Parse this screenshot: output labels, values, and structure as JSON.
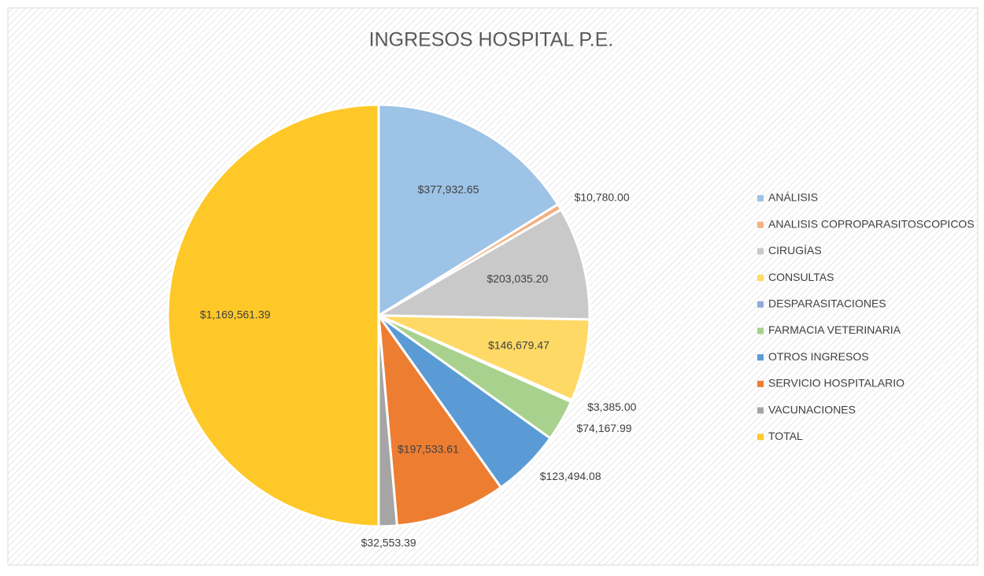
{
  "chart_data": {
    "type": "pie",
    "title": "INGRESOS HOSPITAL P.E.",
    "categories": [
      "ANÁLISIS",
      "ANALISIS COPROPARASITOSCOPICOS",
      "CIRUGÍAS",
      "CONSULTAS",
      "DESPARASITACIONES",
      "FARMACIA VETERINARIA",
      "OTROS INGRESOS",
      "SERVICIO HOSPITALARIO",
      "VACUNACIONES",
      "TOTAL"
    ],
    "values": [
      377932.65,
      10780.0,
      203035.2,
      146679.47,
      3385.0,
      74167.99,
      123494.08,
      197533.61,
      32553.39,
      1169561.39
    ],
    "value_labels": [
      "$377,932.65",
      "$10,780.00",
      "$203,035.20",
      "$146,679.47",
      "$3,385.00",
      "$74,167.99",
      "$123,494.08",
      "$197,533.61",
      "$32,553.39",
      "$1,169,561.39"
    ],
    "colors": [
      "#9dc3e6",
      "#f4b183",
      "#c9c9c9",
      "#ffd966",
      "#8faadc",
      "#a9d18e",
      "#5b9bd5",
      "#ed7d31",
      "#a5a5a5",
      "#ffc829"
    ],
    "legend": "right"
  }
}
